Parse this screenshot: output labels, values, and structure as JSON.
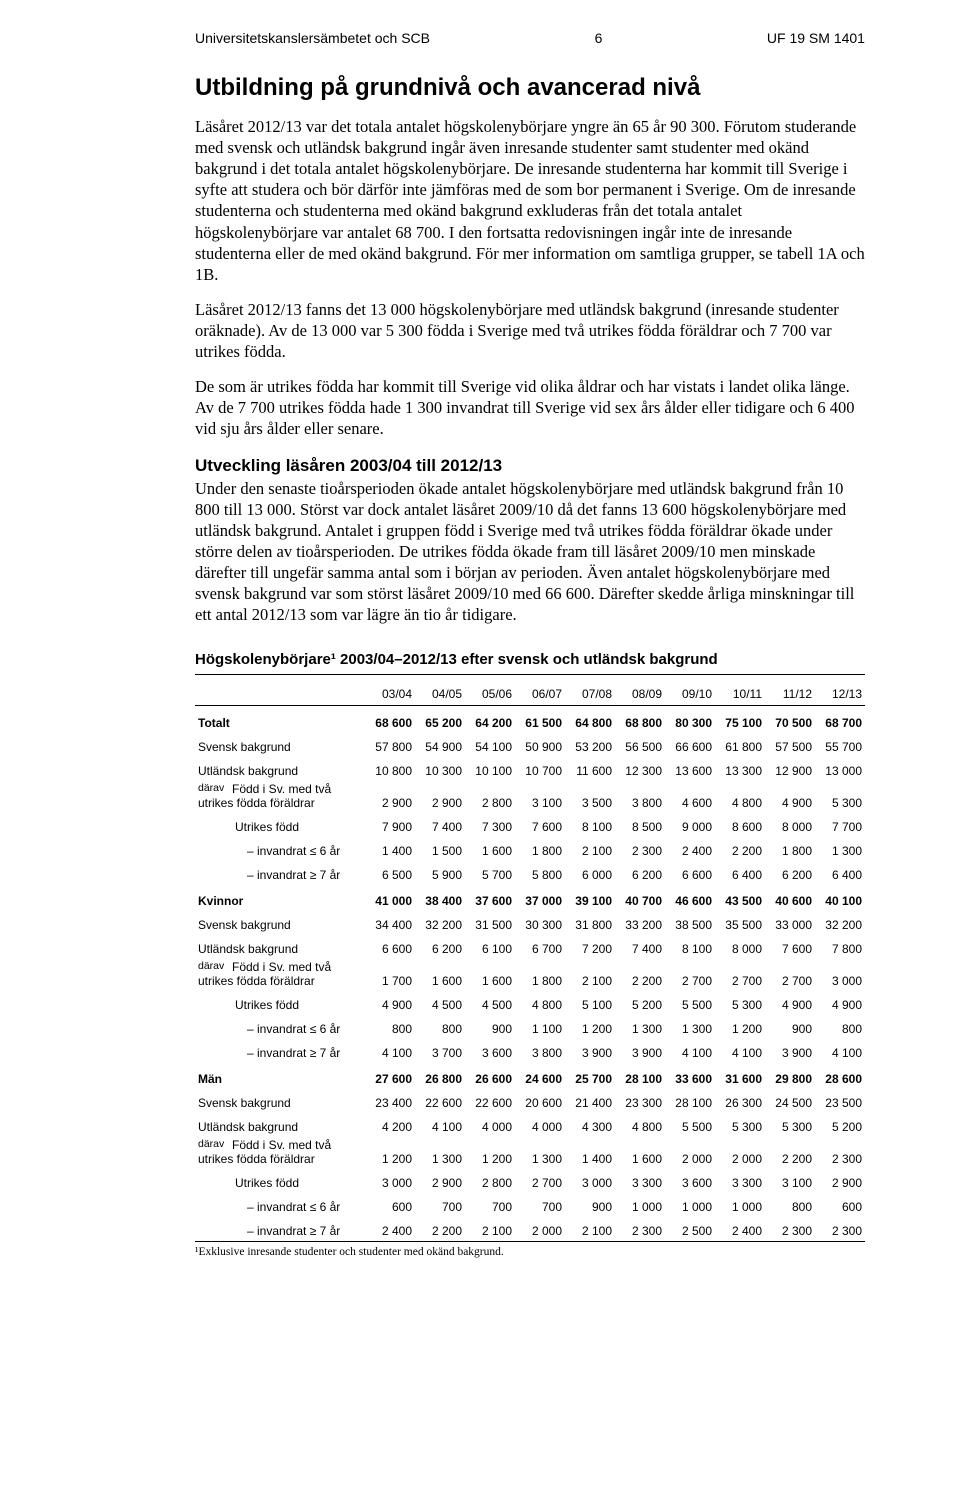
{
  "header": {
    "left": "Universitetskanslersämbetet och SCB",
    "page": "6",
    "right": "UF 19 SM 1401"
  },
  "title": "Utbildning på grundnivå och avancerad nivå",
  "paras": {
    "p1": "Läsåret 2012/13 var det totala antalet högskolenybörjare yngre än 65 år 90 300. Förutom studerande med svensk och utländsk bakgrund ingår även inresande studenter samt studenter med okänd bakgrund i det totala antalet högskolenybörjare. De inresande studenterna har kommit till Sverige i syfte att studera och bör därför inte jämföras med de som bor permanent i Sverige. Om de inresande studenterna och studenterna med okänd bakgrund exkluderas från det totala antalet högskolenybörjare var antalet 68 700. I den fortsatta redovisningen ingår inte de inresande studenterna eller de med okänd bakgrund. För mer information om samtliga grupper, se tabell 1A och 1B.",
    "p2": "Läsåret 2012/13 fanns det 13 000 högskolenybörjare med utländsk bakgrund (inresande studenter oräknade). Av de 13 000 var 5 300 födda i Sverige med två utrikes födda föräldrar och 7 700 var utrikes födda.",
    "p3": "De som är utrikes födda har kommit till Sverige vid olika åldrar och har vistats i landet olika länge. Av de 7 700 utrikes födda hade 1 300 invandrat till Sverige vid sex års ålder eller tidigare och 6 400 vid sju års ålder eller senare.",
    "p4": "Under den senaste tioårsperioden ökade antalet högskolenybörjare med utländsk bakgrund från 10 800 till 13 000. Störst var dock antalet läsåret 2009/10 då det fanns 13 600 högskolenybörjare med utländsk bakgrund. Antalet i gruppen född i Sverige med två utrikes födda föräldrar ökade under större delen av tioårsperioden. De utrikes födda ökade fram till läsåret 2009/10 men minskade därefter till ungefär samma antal som i början av perioden. Även antalet högskolenybörjare med svensk bakgrund var som störst läsåret 2009/10 med 66 600. Därefter skedde årliga minskningar till ett antal 2012/13 som var lägre än tio år tidigare."
  },
  "subhead": "Utveckling läsåren 2003/04 till 2012/13",
  "tablehead": "Högskolenybörjare¹ 2003/04–2012/13 efter svensk och utländsk bakgrund",
  "years": [
    "03/04",
    "04/05",
    "05/06",
    "06/07",
    "07/08",
    "08/09",
    "09/10",
    "10/11",
    "11/12",
    "12/13"
  ],
  "labels": {
    "totalt": "Totalt",
    "svensk": "Svensk bakgrund",
    "utlandsk": "Utländsk bakgrund",
    "darav": "därav",
    "fodd_sv": "Född i Sv. med två utrikes födda föräldrar",
    "utrikes": "Utrikes född",
    "inv6": "– invandrat ≤ 6 år",
    "inv7": "– invandrat ≥ 7 år",
    "kvinnor": "Kvinnor",
    "man": "Män"
  },
  "rows": {
    "totalt": [
      "68 600",
      "65 200",
      "64 200",
      "61 500",
      "64 800",
      "68 800",
      "80 300",
      "75 100",
      "70 500",
      "68 700"
    ],
    "t_svensk": [
      "57 800",
      "54 900",
      "54 100",
      "50 900",
      "53 200",
      "56 500",
      "66 600",
      "61 800",
      "57 500",
      "55 700"
    ],
    "t_utl": [
      "10 800",
      "10 300",
      "10 100",
      "10 700",
      "11 600",
      "12 300",
      "13 600",
      "13 300",
      "12 900",
      "13 000"
    ],
    "t_fodd": [
      "2 900",
      "2 900",
      "2 800",
      "3 100",
      "3 500",
      "3 800",
      "4 600",
      "4 800",
      "4 900",
      "5 300"
    ],
    "t_utrikes": [
      "7 900",
      "7 400",
      "7 300",
      "7 600",
      "8 100",
      "8 500",
      "9 000",
      "8 600",
      "8 000",
      "7 700"
    ],
    "t_inv6": [
      "1 400",
      "1 500",
      "1 600",
      "1 800",
      "2 100",
      "2 300",
      "2 400",
      "2 200",
      "1 800",
      "1 300"
    ],
    "t_inv7": [
      "6 500",
      "5 900",
      "5 700",
      "5 800",
      "6 000",
      "6 200",
      "6 600",
      "6 400",
      "6 200",
      "6 400"
    ],
    "kvinnor": [
      "41 000",
      "38 400",
      "37 600",
      "37 000",
      "39 100",
      "40 700",
      "46 600",
      "43 500",
      "40 600",
      "40 100"
    ],
    "k_svensk": [
      "34 400",
      "32 200",
      "31 500",
      "30 300",
      "31 800",
      "33 200",
      "38 500",
      "35 500",
      "33 000",
      "32 200"
    ],
    "k_utl": [
      "6 600",
      "6 200",
      "6 100",
      "6 700",
      "7 200",
      "7 400",
      "8 100",
      "8 000",
      "7 600",
      "7 800"
    ],
    "k_fodd": [
      "1 700",
      "1 600",
      "1 600",
      "1 800",
      "2 100",
      "2 200",
      "2 700",
      "2 700",
      "2 700",
      "3 000"
    ],
    "k_utrikes": [
      "4 900",
      "4 500",
      "4 500",
      "4 800",
      "5 100",
      "5 200",
      "5 500",
      "5 300",
      "4 900",
      "4 900"
    ],
    "k_inv6": [
      "800",
      "800",
      "900",
      "1 100",
      "1 200",
      "1 300",
      "1 300",
      "1 200",
      "900",
      "800"
    ],
    "k_inv7": [
      "4 100",
      "3 700",
      "3 600",
      "3 800",
      "3 900",
      "3 900",
      "4 100",
      "4 100",
      "3 900",
      "4 100"
    ],
    "man": [
      "27 600",
      "26 800",
      "26 600",
      "24 600",
      "25 700",
      "28 100",
      "33 600",
      "31 600",
      "29 800",
      "28 600"
    ],
    "m_svensk": [
      "23 400",
      "22 600",
      "22 600",
      "20 600",
      "21 400",
      "23 300",
      "28 100",
      "26 300",
      "24 500",
      "23 500"
    ],
    "m_utl": [
      "4 200",
      "4 100",
      "4 000",
      "4 000",
      "4 300",
      "4 800",
      "5 500",
      "5 300",
      "5 300",
      "5 200"
    ],
    "m_fodd": [
      "1 200",
      "1 300",
      "1 200",
      "1 300",
      "1 400",
      "1 600",
      "2 000",
      "2 000",
      "2 200",
      "2 300"
    ],
    "m_utrikes": [
      "3 000",
      "2 900",
      "2 800",
      "2 700",
      "3 000",
      "3 300",
      "3 600",
      "3 300",
      "3 100",
      "2 900"
    ],
    "m_inv6": [
      "600",
      "700",
      "700",
      "700",
      "900",
      "1 000",
      "1 000",
      "1 000",
      "800",
      "600"
    ],
    "m_inv7": [
      "2 400",
      "2 200",
      "2 100",
      "2 000",
      "2 100",
      "2 300",
      "2 500",
      "2 400",
      "2 300",
      "2 300"
    ]
  },
  "footnote": "¹Exklusive inresande studenter och studenter med okänd bakgrund."
}
